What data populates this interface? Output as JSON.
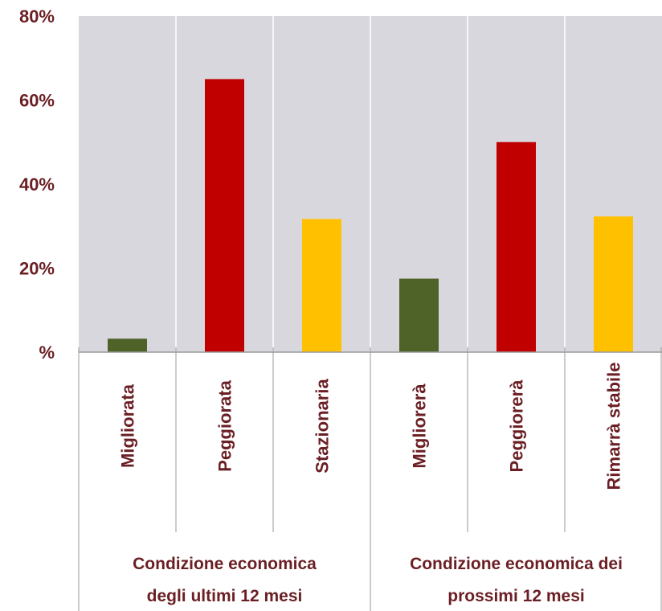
{
  "chart_data": {
    "type": "bar",
    "title": "",
    "xlabel": "",
    "ylabel": "",
    "ylim": [
      0,
      80
    ],
    "y_ticks": [
      "%",
      "20%",
      "40%",
      "60%",
      "80%"
    ],
    "y_tick_values": [
      0,
      20,
      40,
      60,
      80
    ],
    "grid": "vertical lines between categories",
    "categories": [
      "Migliorata",
      "Peggiorata",
      "Stazionaria",
      "Migliorerà",
      "Peggiorerà",
      "Rimarrà stabile"
    ],
    "values": [
      3.2,
      65,
      31.7,
      17.5,
      50,
      32.3
    ],
    "bar_colors": [
      "#4f6228",
      "#c00000",
      "#ffc000",
      "#4f6228",
      "#c00000",
      "#ffc000"
    ],
    "groups": [
      {
        "lines": [
          "Condizione economica",
          "degli ultimi 12 mesi"
        ],
        "categories": [
          0,
          1,
          2
        ]
      },
      {
        "lines": [
          "Condizione economica dei",
          "prossimi 12 mesi"
        ],
        "categories": [
          3,
          4,
          5
        ]
      }
    ]
  },
  "colors": {
    "plot_background": "#d9d7de",
    "gridline": "#ffffff",
    "axis": "#9a9a9a",
    "text": "#6b1f24"
  }
}
